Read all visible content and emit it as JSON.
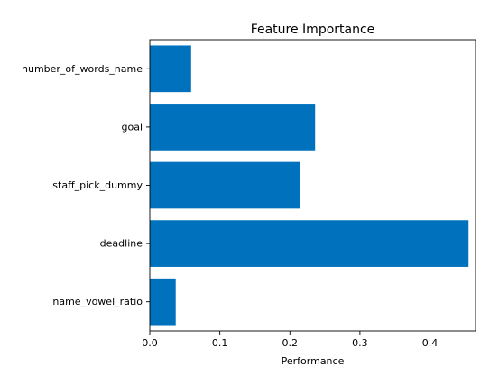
{
  "chart_data": {
    "type": "bar",
    "orientation": "horizontal",
    "title": "Feature Importance",
    "xlabel": "Performance",
    "ylabel": "",
    "xlim": [
      0.0,
      0.465
    ],
    "xticks": [
      0.0,
      0.1,
      0.2,
      0.3,
      0.4
    ],
    "xtick_labels": [
      "0.0",
      "0.1",
      "0.2",
      "0.3",
      "0.4"
    ],
    "categories": [
      "number_of_words_name",
      "goal",
      "staff_pick_dummy",
      "deadline",
      "name_vowel_ratio"
    ],
    "values": [
      0.059,
      0.236,
      0.214,
      0.455,
      0.037
    ],
    "color": "#0072bd",
    "grid": false,
    "legend": "none"
  }
}
